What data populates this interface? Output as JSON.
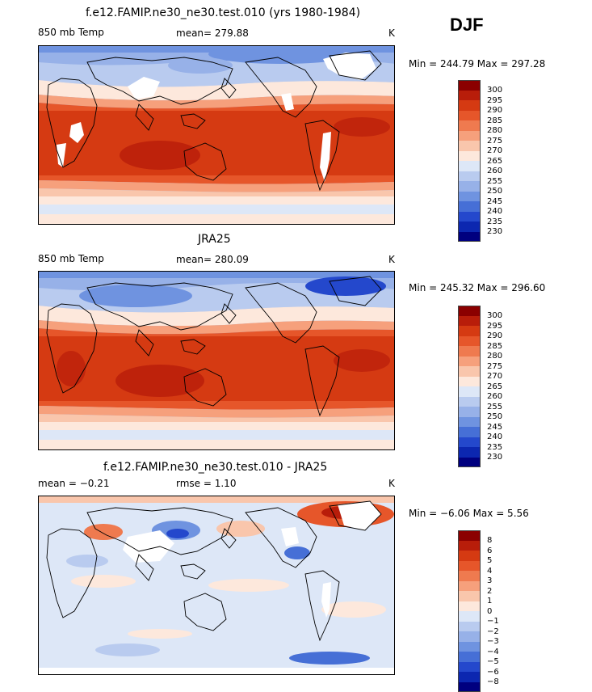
{
  "season": "DJF",
  "panels": [
    {
      "title": "f.e12.FAMIP.ne30_ne30.test.010 (yrs 1980-1984)",
      "left_label": "850 mb Temp",
      "center_label": "mean= 279.88",
      "units": "K",
      "minmax": "Min = 244.79 Max = 297.28",
      "colorbar": {
        "labels": [
          "300",
          "295",
          "290",
          "285",
          "280",
          "275",
          "270",
          "265",
          "260",
          "255",
          "250",
          "245",
          "240",
          "235",
          "230"
        ],
        "colors": [
          "#8b0000",
          "#b81d0a",
          "#d53a12",
          "#e6562a",
          "#ef7a4f",
          "#f6a07c",
          "#f9c6ac",
          "#fde8dc",
          "#dde7f7",
          "#b9cbef",
          "#97b1e8",
          "#6f93e0",
          "#466fd6",
          "#2448cc",
          "#0c27b0",
          "#00007f"
        ]
      }
    },
    {
      "title": "JRA25",
      "left_label": "850 mb Temp",
      "center_label": "mean= 280.09",
      "units": "K",
      "minmax": "Min = 245.32 Max = 296.60",
      "colorbar": {
        "labels": [
          "300",
          "295",
          "290",
          "285",
          "280",
          "275",
          "270",
          "265",
          "260",
          "255",
          "250",
          "245",
          "240",
          "235",
          "230"
        ],
        "colors": [
          "#8b0000",
          "#b81d0a",
          "#d53a12",
          "#e6562a",
          "#ef7a4f",
          "#f6a07c",
          "#f9c6ac",
          "#fde8dc",
          "#dde7f7",
          "#b9cbef",
          "#97b1e8",
          "#6f93e0",
          "#466fd6",
          "#2448cc",
          "#0c27b0",
          "#00007f"
        ]
      }
    },
    {
      "title": "f.e12.FAMIP.ne30_ne30.test.010 - JRA25",
      "left_label": "mean =  −0.21",
      "center_label": "rmse =   1.10",
      "units": "K",
      "minmax": "Min =  −6.06 Max =   5.56",
      "colorbar": {
        "labels": [
          "8",
          "6",
          "5",
          "4",
          "3",
          "2",
          "1",
          "0",
          "−1",
          "−2",
          "−3",
          "−4",
          "−5",
          "−6",
          "−8"
        ],
        "colors": [
          "#8b0000",
          "#b81d0a",
          "#d53a12",
          "#e6562a",
          "#ef7a4f",
          "#f6a07c",
          "#f9c6ac",
          "#fde8dc",
          "#dde7f7",
          "#b9cbef",
          "#97b1e8",
          "#6f93e0",
          "#466fd6",
          "#2448cc",
          "#0c27b0",
          "#00007f"
        ]
      }
    }
  ]
}
